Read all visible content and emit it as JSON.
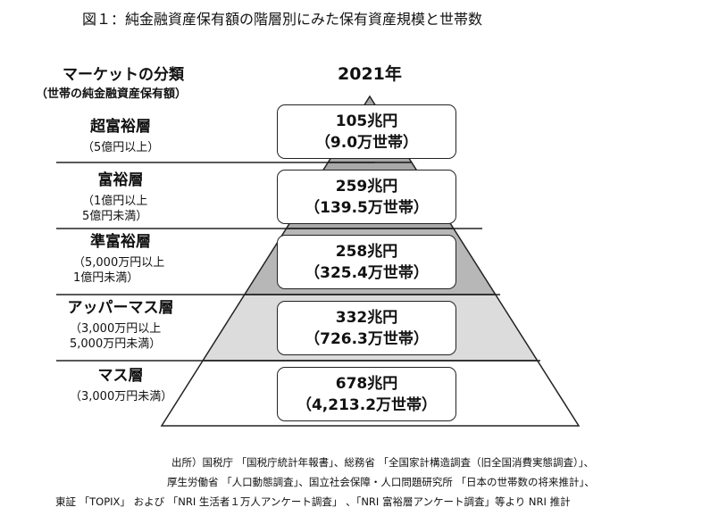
{
  "title": "図１：純金融資産保有額の階層別にみた保有資産規模と世帯数",
  "header": {
    "category_label": "マーケットの分類",
    "category_sub": "（世帯の純金融資産保有額）",
    "year": "2021年"
  },
  "tiers": [
    {
      "name": "超富裕層",
      "range": "（5億円以上）",
      "assets": "105兆円",
      "households": "（9.0万世帯）"
    },
    {
      "name": "富裕層",
      "range": "（1億円以上\n5億円未満）",
      "assets": "259兆円",
      "households": "（139.5万世帯）"
    },
    {
      "name": "準富裕層",
      "range": "（5,000万円以上\n1億円未満）",
      "assets": "258兆円",
      "households": "（325.4万世帯）"
    },
    {
      "name": "アッパーマス層",
      "range": "（3,000万円以上\n5,000万円未満）",
      "assets": "332兆円",
      "households": "（726.3万世帯）"
    },
    {
      "name": "マス層",
      "range": "（3,000万円未満）",
      "assets": "678兆円",
      "households": "（4,213.2万世帯）"
    }
  ],
  "colors": {
    "tier_fills": [
      "#a9a9a9",
      "#a9a9a9",
      "#b7b7b7",
      "#dcdcdc",
      "#ffffff"
    ]
  },
  "source": [
    "出所）国税庁 「国税庁統計年報書」、総務省 「全国家計構造調査（旧全国消費実態調査）」、",
    "厚生労働省 「人口動態調査」、国立社会保障・人口問題研究所 「日本の世帯数の将来推計」、",
    "東証 「TOPIX」 および 「NRI 生活者１万人アンケート調査」 、「NRI 富裕層アンケート調査」等より NRI 推計"
  ]
}
